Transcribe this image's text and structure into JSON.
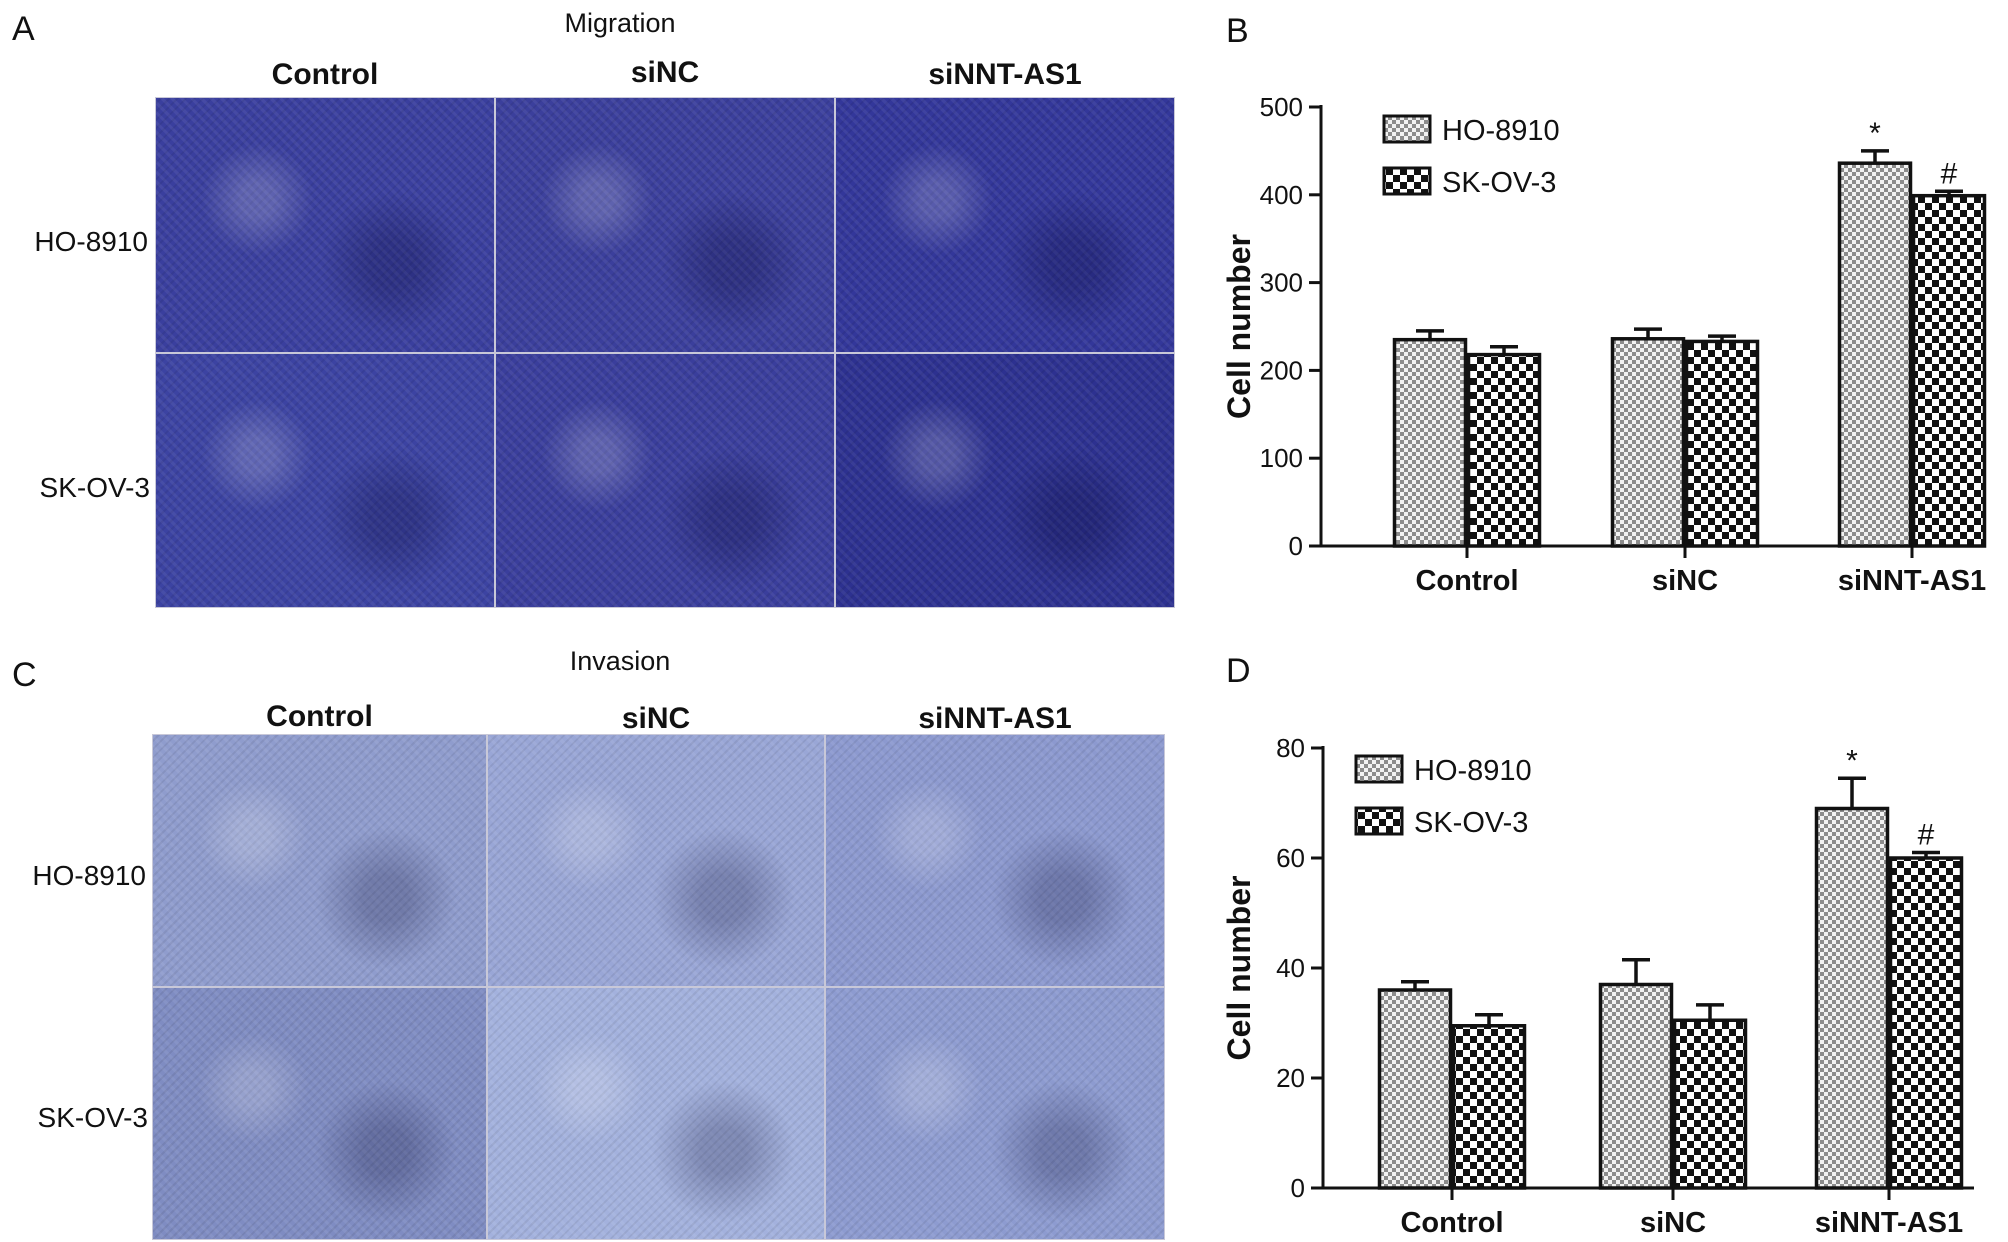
{
  "panels": {
    "A": {
      "letter": "A",
      "title": "Migration",
      "columns": [
        "Control",
        "siNC",
        "siNNT-AS1"
      ],
      "rows": [
        "HO-8910",
        "SK-OV-3"
      ]
    },
    "C": {
      "letter": "C",
      "title": "Invasion",
      "columns": [
        "Control",
        "siNC",
        "siNNT-AS1"
      ],
      "rows": [
        "HO-8910",
        "SK-OV-3"
      ]
    },
    "B": {
      "letter": "B"
    },
    "D": {
      "letter": "D"
    }
  },
  "chart_data": [
    {
      "id": "B",
      "type": "bar",
      "ylabel": "Cell number",
      "ylim": [
        0,
        500
      ],
      "yticks": [
        "0",
        "100",
        "200",
        "300",
        "400",
        "500"
      ],
      "categories": [
        "Control",
        "siNC",
        "siNNT-AS1"
      ],
      "series": [
        {
          "name": "HO-8910",
          "values": [
            235,
            236,
            436
          ],
          "errors": [
            10,
            11,
            14
          ],
          "pattern": "fine-check"
        },
        {
          "name": "SK-OV-3",
          "values": [
            218,
            233,
            399
          ],
          "errors": [
            9,
            6,
            5
          ],
          "pattern": "coarse-check"
        }
      ],
      "annotations": [
        {
          "category": "siNNT-AS1",
          "series": "HO-8910",
          "text": "*"
        },
        {
          "category": "siNNT-AS1",
          "series": "SK-OV-3",
          "text": "#"
        }
      ],
      "legend_position": "top-left",
      "grid": false
    },
    {
      "id": "D",
      "type": "bar",
      "ylabel": "Cell number",
      "ylim": [
        0,
        80
      ],
      "yticks": [
        "0",
        "20",
        "40",
        "60",
        "80"
      ],
      "categories": [
        "Control",
        "siNC",
        "siNNT-AS1"
      ],
      "series": [
        {
          "name": "HO-8910",
          "values": [
            36,
            37,
            69
          ],
          "errors": [
            1.5,
            4.5,
            5.5
          ],
          "pattern": "fine-check"
        },
        {
          "name": "SK-OV-3",
          "values": [
            29.5,
            30.5,
            60
          ],
          "errors": [
            2,
            2.8,
            1
          ],
          "pattern": "coarse-check"
        }
      ],
      "annotations": [
        {
          "category": "siNNT-AS1",
          "series": "HO-8910",
          "text": "*"
        },
        {
          "category": "siNNT-AS1",
          "series": "SK-OV-3",
          "text": "#"
        }
      ],
      "legend_position": "top-left",
      "grid": false
    }
  ],
  "micrographs": {
    "migration": [
      "#3a3f9e",
      "#3b3f9c",
      "#33379a",
      "#3c43a2",
      "#3a3e9c",
      "#2d3190"
    ],
    "invasion": [
      "#8f9ccd",
      "#99a6d6",
      "#8c99cf",
      "#7f8cc2",
      "#a3b1dd",
      "#8d9bd0"
    ]
  }
}
